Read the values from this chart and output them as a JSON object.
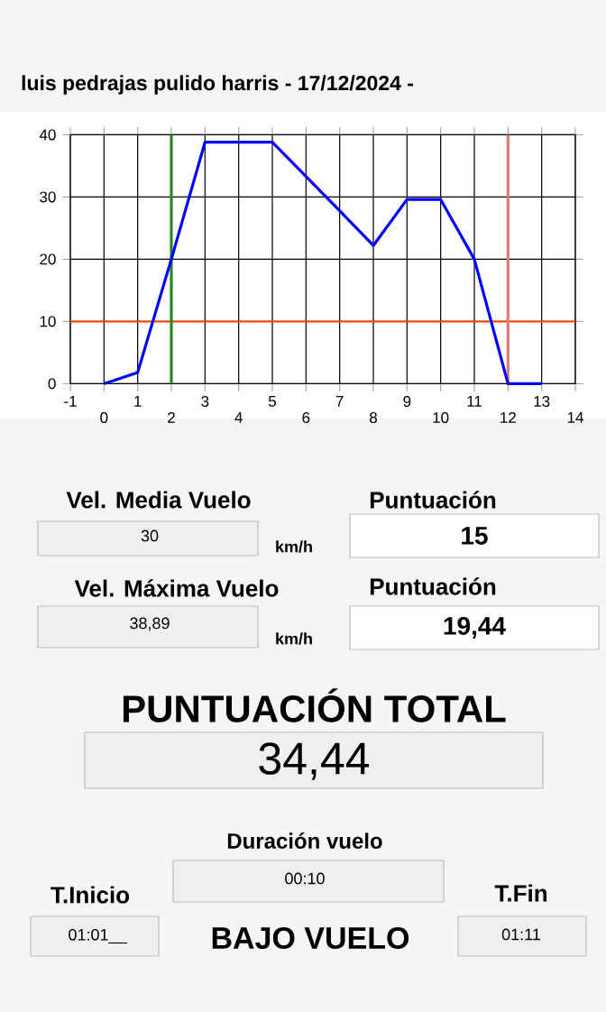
{
  "chart_data": [
    {
      "type": "line",
      "title": "luis pedrajas pulido harris  -  17/12/2024  -",
      "x": [
        0,
        1,
        2,
        3,
        4,
        5,
        6,
        7,
        8,
        9,
        10,
        11,
        12,
        13
      ],
      "series": [
        {
          "color": "#0000ff",
          "values": [
            0,
            1.8,
            20,
            38.8,
            38.8,
            38.8,
            33.3,
            27.8,
            22.2,
            29.6,
            29.6,
            20,
            0,
            0
          ]
        }
      ],
      "xlim": [
        -1,
        14
      ],
      "xticks": [
        -1,
        1,
        3,
        5,
        7,
        9,
        11,
        13
      ],
      "x2lim": [
        -1,
        14
      ],
      "x2ticks": [
        0,
        2,
        4,
        6,
        8,
        10,
        12,
        14
      ],
      "ylim": [
        0,
        40
      ],
      "yticks": [
        0,
        10,
        20,
        30,
        40
      ],
      "grid": true,
      "ref_lines": [
        {
          "axis": "y",
          "value": 10,
          "color": "#ff4500"
        },
        {
          "axis": "x",
          "value": 2,
          "color": "#228b22"
        },
        {
          "axis": "x",
          "value": 12,
          "color": "#e07b7b"
        }
      ]
    },
    {
      "type": "other",
      "annotations": [
        "Vel. Media Vuelo",
        "30",
        "km/h",
        "Puntuación",
        "15",
        "Vel. Máxima Vuelo",
        "38,89",
        "km/h",
        "Puntuación",
        "19,44",
        "PUNTUACIÓN TOTAL",
        "34,44",
        "Duración vuelo",
        "00:10",
        "T.Inicio",
        "01:01__",
        "BAJO VUELO",
        "T.Fin",
        "01:11"
      ]
    }
  ]
}
